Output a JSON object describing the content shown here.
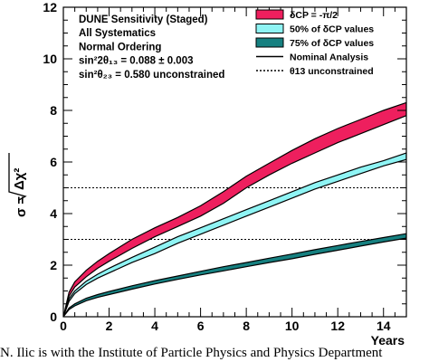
{
  "chart_data": {
    "type": "area",
    "title": "",
    "xlabel": "Years",
    "ylabel_main": "σ = ",
    "ylabel_root": "Δχ²",
    "xlim": [
      0,
      15
    ],
    "ylim": [
      0,
      12
    ],
    "xticks": [
      0,
      2,
      4,
      6,
      8,
      10,
      12,
      14
    ],
    "yticks": [
      0,
      2,
      4,
      6,
      8,
      10,
      12
    ],
    "grid": false,
    "legend_position": "top-right",
    "annotations": [
      "DUNE Sensitivity (Staged)",
      "All Systematics",
      "Normal Ordering",
      "sin²2θ₁₃ = 0.088 ± 0.003",
      "sin²θ₂₃ = 0.580 unconstrained"
    ],
    "reference_lines": [
      {
        "y": 3,
        "style": "dotted"
      },
      {
        "y": 5,
        "style": "dotted"
      }
    ],
    "series": [
      {
        "name": "δCP = -π/2",
        "color": "#ee1f5e",
        "x": [
          0,
          0.25,
          0.5,
          1,
          1.5,
          2,
          3,
          4,
          5,
          6,
          7,
          8,
          9,
          10,
          11,
          12,
          13,
          14,
          15
        ],
        "lower": [
          0,
          0.8,
          1.15,
          1.55,
          1.88,
          2.15,
          2.65,
          3.1,
          3.5,
          3.9,
          4.4,
          5.0,
          5.5,
          5.95,
          6.35,
          6.75,
          7.1,
          7.45,
          7.8
        ],
        "upper": [
          0,
          0.95,
          1.35,
          1.8,
          2.15,
          2.45,
          3.0,
          3.45,
          3.85,
          4.3,
          4.85,
          5.45,
          5.95,
          6.45,
          6.9,
          7.3,
          7.65,
          8.0,
          8.3
        ]
      },
      {
        "name": "50% of δCP values",
        "color": "#8ff4f4",
        "x": [
          0,
          0.25,
          0.5,
          1,
          1.5,
          2,
          3,
          4,
          5,
          6,
          7,
          8,
          9,
          10,
          11,
          12,
          13,
          14,
          15
        ],
        "lower": [
          0,
          0.6,
          0.9,
          1.25,
          1.5,
          1.7,
          2.1,
          2.45,
          2.85,
          3.2,
          3.55,
          3.9,
          4.25,
          4.6,
          4.95,
          5.25,
          5.55,
          5.85,
          6.1
        ],
        "upper": [
          0,
          0.7,
          1.0,
          1.38,
          1.65,
          1.88,
          2.3,
          2.7,
          3.1,
          3.45,
          3.8,
          4.15,
          4.5,
          4.85,
          5.2,
          5.5,
          5.8,
          6.05,
          6.35
        ]
      },
      {
        "name": "75% of δCP values",
        "color": "#168080",
        "x": [
          0,
          0.25,
          0.5,
          1,
          1.5,
          2,
          3,
          4,
          5,
          6,
          7,
          8,
          9,
          10,
          11,
          12,
          13,
          14,
          15
        ],
        "lower": [
          0,
          0.28,
          0.42,
          0.62,
          0.75,
          0.86,
          1.07,
          1.27,
          1.45,
          1.62,
          1.78,
          1.94,
          2.1,
          2.25,
          2.42,
          2.58,
          2.74,
          2.9,
          3.05
        ],
        "upper": [
          0,
          0.34,
          0.5,
          0.72,
          0.86,
          0.98,
          1.2,
          1.4,
          1.58,
          1.76,
          1.94,
          2.1,
          2.27,
          2.43,
          2.6,
          2.76,
          2.92,
          3.07,
          3.22
        ]
      }
    ],
    "legend": [
      {
        "label": "δCP = -π/2",
        "kind": "band",
        "color": "#ee1f5e"
      },
      {
        "label": "50% of δCP values",
        "kind": "band",
        "color": "#8ff4f4"
      },
      {
        "label": "75% of δCP values",
        "kind": "band",
        "color": "#168080"
      },
      {
        "label": "Nominal Analysis",
        "kind": "line-solid",
        "color": "#000000"
      },
      {
        "label": "θ13 unconstrained",
        "kind": "line-dotted",
        "color": "#000000"
      }
    ]
  },
  "caption": "N. Ilic is with the Institute of Particle Physics and Physics Department"
}
